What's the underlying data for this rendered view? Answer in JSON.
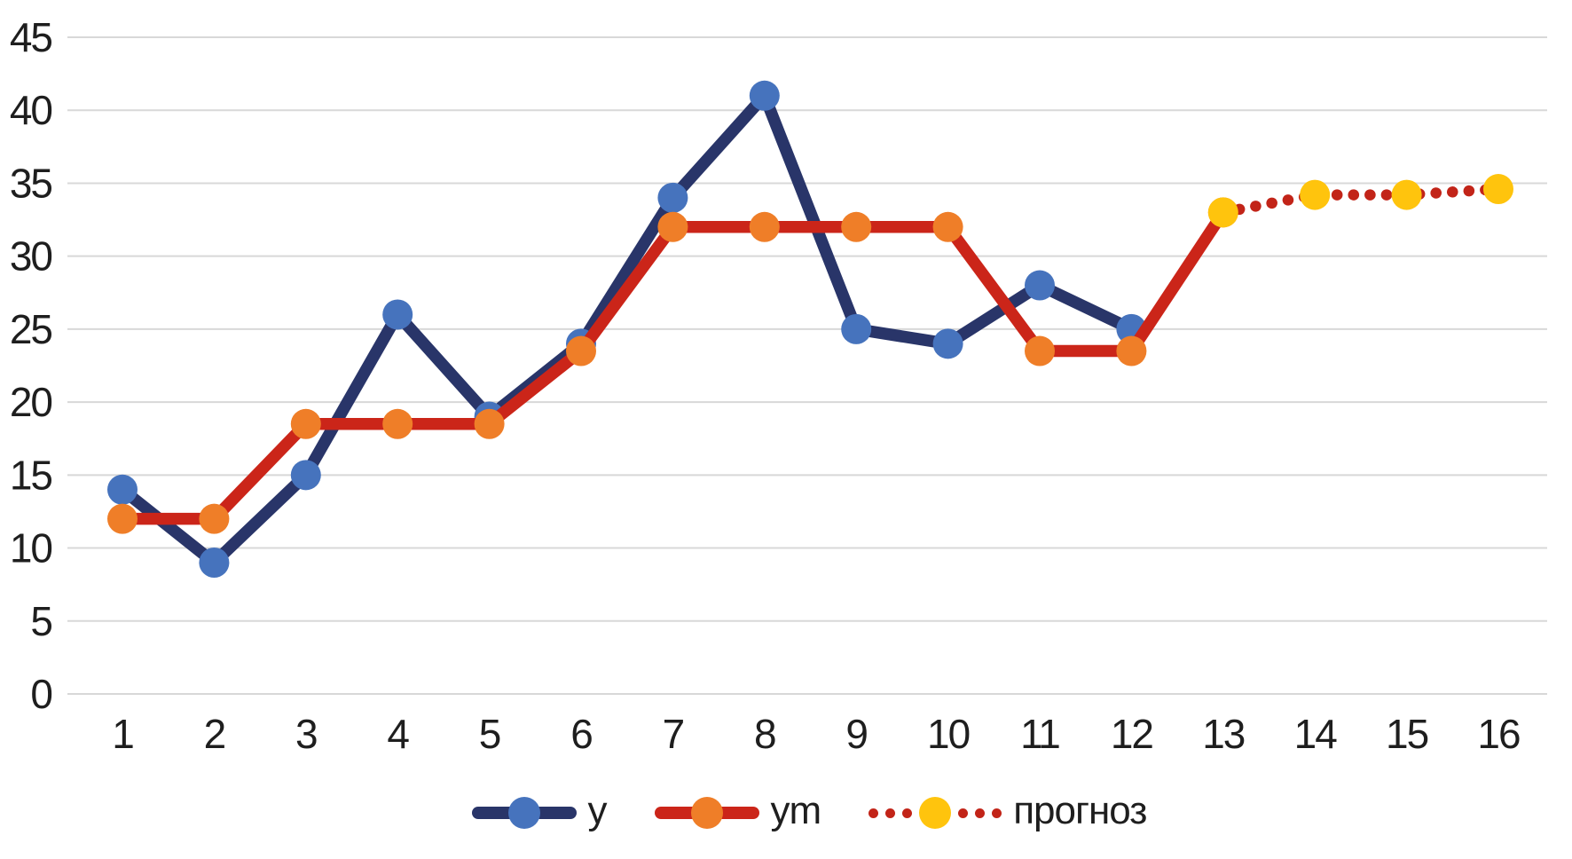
{
  "chart_data": {
    "type": "line",
    "title": "",
    "xlabel": "",
    "ylabel": "",
    "x_categories": [
      1,
      2,
      3,
      4,
      5,
      6,
      7,
      8,
      9,
      10,
      11,
      12,
      13,
      14,
      15,
      16
    ],
    "ylim": [
      0,
      45
    ],
    "y_ticks": [
      0,
      5,
      10,
      15,
      20,
      25,
      30,
      35,
      40,
      45
    ],
    "grid": "horizontal",
    "gridline_color": "#d8d8d8",
    "axis_label_color": "#1e1e1e",
    "background_color": "#ffffff",
    "legend_position": "bottom",
    "series": [
      {
        "name": "y",
        "x_start": 1,
        "values": [
          14,
          9,
          15,
          26,
          19,
          24,
          34,
          41,
          25,
          24,
          28,
          25
        ],
        "line_color": "#293569",
        "marker_color": "#4673bd",
        "line_style": "solid",
        "marker": "circle"
      },
      {
        "name": "ym",
        "x_start": 1,
        "values": [
          12,
          12,
          18.5,
          18.5,
          18.5,
          23.5,
          32,
          32,
          32,
          32,
          23.5,
          23.5,
          33
        ],
        "line_color": "#cb2519",
        "marker_color": "#ef7e28",
        "line_style": "solid",
        "marker": "circle"
      },
      {
        "name": "прогноз",
        "x_start": 13,
        "values": [
          33,
          34.2,
          34.2,
          34.6
        ],
        "line_color": "#c22418",
        "marker_color": "#ffc40d",
        "line_style": "dotted",
        "marker": "circle"
      }
    ]
  }
}
